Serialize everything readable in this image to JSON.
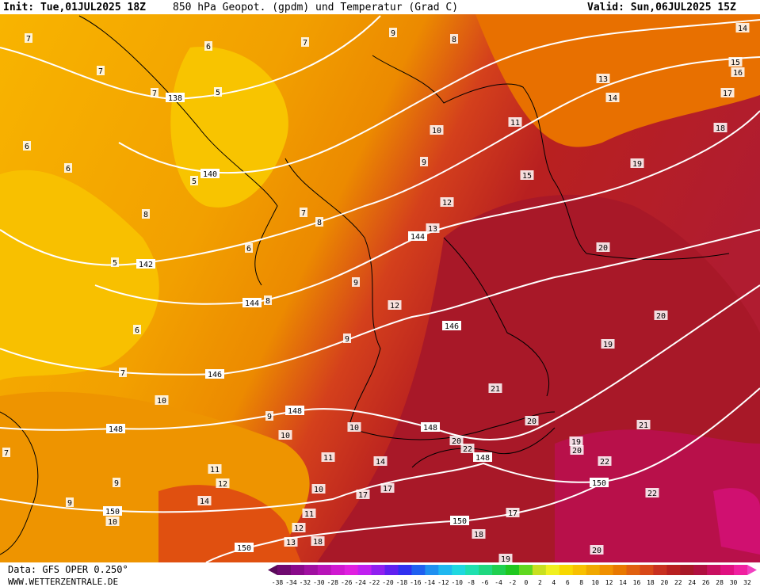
{
  "header": {
    "init": "Init: Tue,01JUL2025 18Z",
    "title": "850 hPa Geopot. (gpdm) und Temperatur (Grad C)",
    "valid": "Valid: Sun,06JUL2025 15Z"
  },
  "footer": {
    "data": "Data: GFS OPER 0.250°",
    "site": "WWW.WETTERZENTRALE.DE"
  },
  "contour_labels": [
    "7",
    "7",
    "9",
    "8",
    "14",
    "6",
    "7",
    "15",
    "16",
    "7",
    "138",
    "5",
    "13",
    "14",
    "17",
    "11",
    "10",
    "18",
    "6",
    "6",
    "9",
    "19",
    "140",
    "5",
    "15",
    "12",
    "7",
    "8",
    "8",
    "13",
    "144",
    "6",
    "20",
    "5",
    "142",
    "9",
    "144",
    "8",
    "12",
    "6",
    "146",
    "20",
    "9",
    "19",
    "7",
    "146",
    "21",
    "10",
    "9",
    "148",
    "20",
    "21",
    "148",
    "10",
    "10",
    "148",
    "20",
    "22",
    "19",
    "20",
    "7",
    "11",
    "14",
    "148",
    "22",
    "11",
    "12",
    "150",
    "22",
    "9",
    "10",
    "17",
    "17",
    "14",
    "9",
    "150",
    "10",
    "11",
    "17",
    "150",
    "12",
    "18",
    "13",
    "18",
    "150",
    "20",
    "19"
  ],
  "colorbar": {
    "labels": [
      -38,
      -34,
      -32,
      -30,
      -28,
      -26,
      -24,
      -22,
      -20,
      -18,
      -16,
      -14,
      -12,
      -10,
      -8,
      -6,
      -4,
      -2,
      0,
      2,
      4,
      6,
      8,
      10,
      12,
      14,
      16,
      18,
      20,
      22,
      24,
      26,
      28,
      30,
      32
    ],
    "colors": [
      "#5a0a5a",
      "#700a70",
      "#8a0a8a",
      "#a010a0",
      "#b814b8",
      "#d018d0",
      "#e020e0",
      "#c020f0",
      "#9020f0",
      "#6020f0",
      "#3030f0",
      "#2060f0",
      "#2090f0",
      "#20b8f0",
      "#20d8e0",
      "#20e0b0",
      "#20d880",
      "#20d050",
      "#20c820",
      "#60d820",
      "#c8e020",
      "#f0f020",
      "#f8d800",
      "#f8c000",
      "#f0a800",
      "#f09000",
      "#e87800",
      "#e06010",
      "#d84818",
      "#c83020",
      "#b82020",
      "#a81828",
      "#b01040",
      "#c81060",
      "#e01080",
      "#f020a0",
      "#f040c0"
    ]
  }
}
